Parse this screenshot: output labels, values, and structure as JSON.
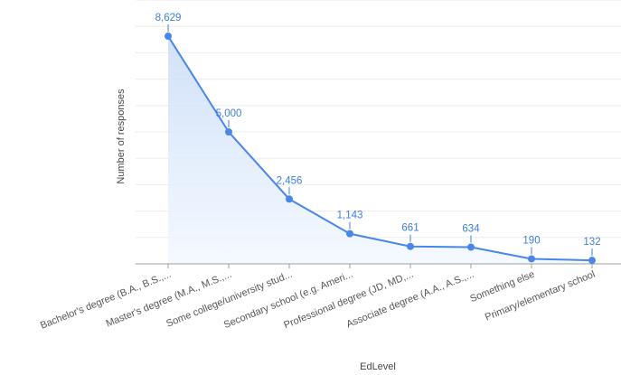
{
  "chart_data": {
    "type": "area",
    "title": "",
    "xlabel": "EdLevel",
    "ylabel": "Number of responses",
    "categories": [
      "Bachelor's degree (B.A., B.S.,...",
      "Master's degree (M.A., M.S.,...",
      "Some college/university stud...",
      "Secondary school (e.g. Ameri...",
      "Professional degree (JD, MD,...",
      "Associate degree (A.A., A.S.,...",
      "Something else",
      "Primary/elementary school"
    ],
    "values": [
      8629,
      5000,
      2456,
      1143,
      661,
      634,
      190,
      132
    ],
    "value_labels": [
      "8,629",
      "5,000",
      "2,456",
      "1,143",
      "661",
      "634",
      "190",
      "132"
    ],
    "ylim": [
      0,
      10000
    ],
    "grid": true,
    "legend": "none",
    "colors": {
      "line": "#4a86e8",
      "area_top": "#c9dcf8",
      "area_bottom": "#f3f8ff",
      "label": "#3b7ddd",
      "grid": "#ececec",
      "axis": "#9e9e9e"
    }
  }
}
